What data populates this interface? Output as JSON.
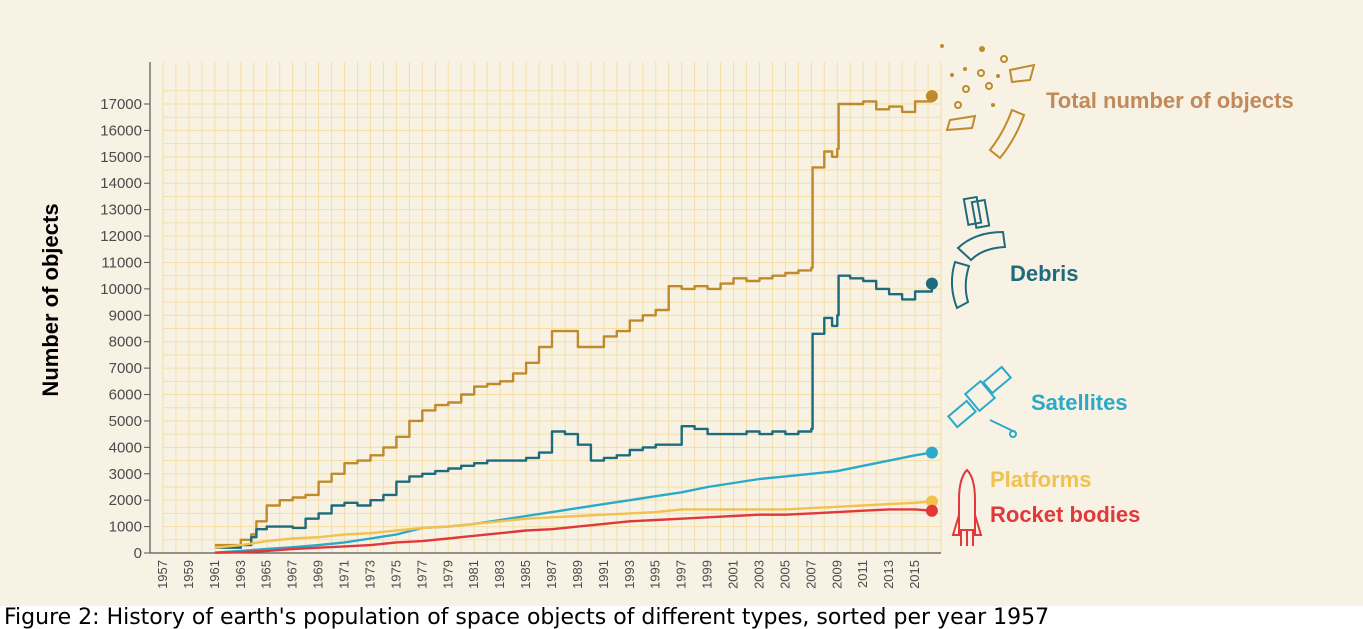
{
  "chart_data": {
    "type": "line",
    "ylabel": "Number of objects",
    "xlabel": "",
    "ylim": [
      0,
      17000
    ],
    "xlim": [
      1957,
      2017
    ],
    "yticks": [
      0,
      1000,
      2000,
      3000,
      4000,
      5000,
      6000,
      7000,
      8000,
      9000,
      10000,
      11000,
      12000,
      13000,
      14000,
      15000,
      16000,
      17000
    ],
    "xticks": [
      "1957",
      "1959",
      "1961",
      "1963",
      "1965",
      "1967",
      "1969",
      "1971",
      "1973",
      "1975",
      "1977",
      "1979",
      "1981",
      "1983",
      "1985",
      "1987",
      "1989",
      "1991",
      "1993",
      "1995",
      "1997",
      "1999",
      "2001",
      "2003",
      "2005",
      "2007",
      "2009",
      "2011",
      "2013",
      "2015"
    ],
    "grid": true,
    "series": [
      {
        "name": "Total number of objects",
        "color": "#c08a2b",
        "icon": "debris-cloud-icon",
        "x": [
          1961,
          1963,
          1963.8,
          1964.2,
          1965,
          1966,
          1967,
          1968,
          1969,
          1970,
          1971,
          1972,
          1973,
          1974,
          1975,
          1976,
          1977,
          1978,
          1979,
          1980,
          1981,
          1982,
          1983,
          1984,
          1985,
          1986,
          1987,
          1988,
          1989,
          1990,
          1991,
          1992,
          1993,
          1994,
          1995,
          1996,
          1997,
          1998,
          1999,
          2000,
          2001,
          2002,
          2003,
          2004,
          2005,
          2006,
          2007,
          2007.1,
          2008,
          2008.6,
          2009,
          2009.1,
          2010,
          2011,
          2012,
          2013,
          2014,
          2015,
          2016.3
        ],
        "values": [
          300,
          500,
          700,
          1200,
          1800,
          2000,
          2100,
          2200,
          2700,
          3000,
          3400,
          3500,
          3700,
          4000,
          4400,
          5000,
          5400,
          5600,
          5700,
          6000,
          6300,
          6400,
          6500,
          6800,
          7200,
          7800,
          8400,
          8400,
          7800,
          7800,
          8200,
          8400,
          8800,
          9000,
          9200,
          10100,
          10000,
          10100,
          10000,
          10200,
          10400,
          10300,
          10400,
          10500,
          10600,
          10700,
          10800,
          14600,
          15200,
          15000,
          15300,
          17000,
          17000,
          17100,
          16800,
          16900,
          16700,
          17100,
          17300
        ]
      },
      {
        "name": "Debris",
        "color": "#1f6b7e",
        "icon": "debris-fragment-icon",
        "x": [
          1961,
          1963,
          1963.8,
          1964.2,
          1965,
          1966,
          1967,
          1968,
          1969,
          1970,
          1971,
          1972,
          1973,
          1974,
          1975,
          1976,
          1977,
          1978,
          1979,
          1980,
          1981,
          1982,
          1983,
          1984,
          1985,
          1986,
          1987,
          1988,
          1989,
          1990,
          1991,
          1992,
          1993,
          1994,
          1995,
          1996,
          1997,
          1998,
          1999,
          2000,
          2001,
          2002,
          2003,
          2004,
          2005,
          2006,
          2007,
          2007.1,
          2008,
          2008.6,
          2009,
          2009.1,
          2010,
          2011,
          2012,
          2013,
          2014,
          2015,
          2016.3
        ],
        "values": [
          200,
          300,
          600,
          900,
          1000,
          1000,
          950,
          1300,
          1500,
          1800,
          1900,
          1800,
          2000,
          2200,
          2700,
          2900,
          3000,
          3100,
          3200,
          3300,
          3400,
          3500,
          3500,
          3500,
          3600,
          3800,
          4600,
          4500,
          4100,
          3500,
          3600,
          3700,
          3900,
          4000,
          4100,
          4100,
          4800,
          4700,
          4500,
          4500,
          4500,
          4600,
          4500,
          4600,
          4500,
          4600,
          4700,
          8300,
          8900,
          8600,
          9000,
          10500,
          10400,
          10300,
          10000,
          9800,
          9600,
          9900,
          10200
        ]
      },
      {
        "name": "Satellites",
        "color": "#2ba9c9",
        "icon": "satellite-icon",
        "x": [
          1961,
          1963,
          1965,
          1967,
          1969,
          1971,
          1973,
          1975,
          1977,
          1979,
          1981,
          1983,
          1985,
          1987,
          1989,
          1991,
          1993,
          1995,
          1997,
          1999,
          2001,
          2003,
          2005,
          2007,
          2009,
          2011,
          2013,
          2015,
          2016.3
        ],
        "values": [
          10,
          80,
          150,
          220,
          300,
          400,
          550,
          700,
          950,
          1000,
          1100,
          1250,
          1400,
          1550,
          1700,
          1850,
          2000,
          2150,
          2300,
          2500,
          2650,
          2800,
          2900,
          3000,
          3100,
          3300,
          3500,
          3700,
          3800
        ]
      },
      {
        "name": "Platforms",
        "color": "#f2c14e",
        "icon": "platform-icon",
        "x": [
          1961,
          1963,
          1965,
          1967,
          1969,
          1971,
          1973,
          1975,
          1977,
          1979,
          1981,
          1983,
          1985,
          1987,
          1989,
          1991,
          1993,
          1995,
          1997,
          1999,
          2001,
          2003,
          2005,
          2007,
          2009,
          2011,
          2013,
          2015,
          2016.3
        ],
        "values": [
          200,
          300,
          450,
          550,
          600,
          700,
          750,
          850,
          950,
          1000,
          1100,
          1200,
          1300,
          1350,
          1400,
          1450,
          1500,
          1550,
          1650,
          1650,
          1650,
          1650,
          1650,
          1700,
          1750,
          1800,
          1850,
          1900,
          1950
        ]
      },
      {
        "name": "Rocket bodies",
        "color": "#e0383b",
        "icon": "rocket-icon",
        "x": [
          1961,
          1963,
          1965,
          1967,
          1969,
          1971,
          1973,
          1975,
          1977,
          1979,
          1981,
          1983,
          1985,
          1987,
          1989,
          1991,
          1993,
          1995,
          1997,
          1999,
          2001,
          2003,
          2005,
          2007,
          2009,
          2011,
          2013,
          2015,
          2016.3
        ],
        "values": [
          10,
          30,
          80,
          150,
          200,
          250,
          300,
          400,
          450,
          550,
          650,
          750,
          850,
          900,
          1000,
          1100,
          1200,
          1250,
          1300,
          1350,
          1400,
          1450,
          1450,
          1500,
          1550,
          1600,
          1650,
          1650,
          1600
        ]
      }
    ]
  },
  "caption": "Figure 2: History of earth's population of space objects of different types, sorted per year 1957"
}
